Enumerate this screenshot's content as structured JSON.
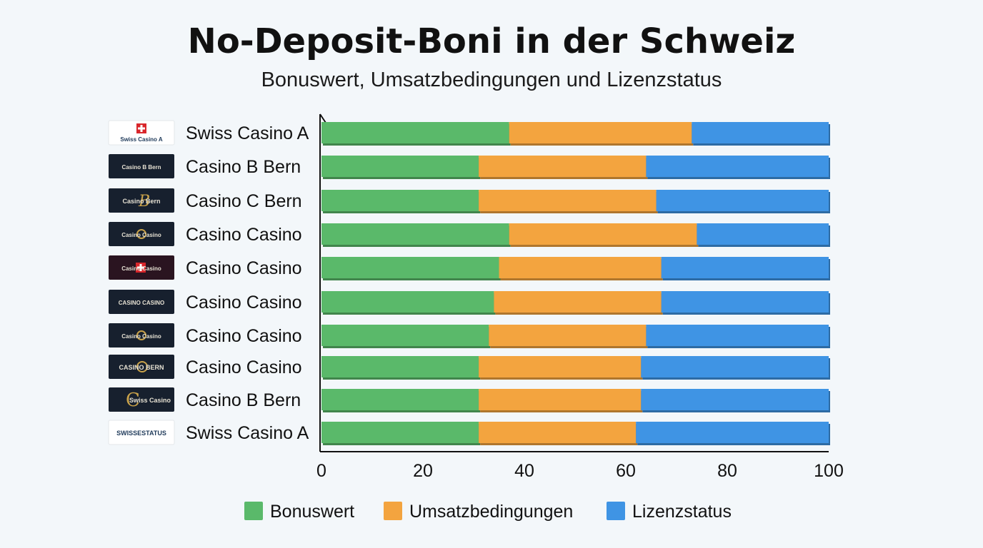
{
  "title": "No-Deposit-Boni in der Schweiz",
  "subtitle": "Bonuswert, Umsatzbedingungen und Lizenzstatus",
  "chart_data": {
    "type": "bar",
    "orientation": "horizontal",
    "stacked": true,
    "categories": [
      "Swiss Casino A",
      "Casino B Bern",
      "Casino C Bern",
      "Casino Casino",
      "Casino Casino",
      "Casino Casino",
      "Casino Casino",
      "Casino Casino",
      "Casino B Bern",
      "Swiss Casino A"
    ],
    "logos": [
      {
        "text": "Swiss Casino A",
        "theme": "light",
        "icon": "swiss-cross-icon"
      },
      {
        "text": "Casino B Bern",
        "theme": "dark",
        "icon": ""
      },
      {
        "text": "Casino Bern",
        "theme": "dark",
        "icon": "b-monogram-icon"
      },
      {
        "text": "Casino Casino",
        "theme": "dark",
        "icon": "emblem-icon"
      },
      {
        "text": "Casino Casino",
        "theme": "maroon",
        "icon": "swiss-cross-icon"
      },
      {
        "text": "CASINO CASINO",
        "theme": "dark",
        "icon": ""
      },
      {
        "text": "Casino Casino",
        "theme": "dark",
        "icon": "emblem-icon"
      },
      {
        "text": "CASINO BERN",
        "theme": "dark",
        "icon": "coin-icon"
      },
      {
        "text": "Swiss Casino",
        "theme": "dark",
        "icon": "c-monogram-icon"
      },
      {
        "text": "SWISSESTATUS",
        "theme": "light",
        "icon": ""
      }
    ],
    "series": [
      {
        "name": "Bonuswert",
        "color": "#5ab96a",
        "values": [
          37,
          31,
          31,
          37,
          35,
          34,
          33,
          31,
          31,
          31
        ]
      },
      {
        "name": "Umsatzbedingungen",
        "color": "#f3a43f",
        "values": [
          36,
          33,
          35,
          37,
          32,
          33,
          31,
          32,
          32,
          31
        ]
      },
      {
        "name": "Lizenzstatus",
        "color": "#3f94e4",
        "values": [
          27,
          36,
          34,
          26,
          33,
          33,
          36,
          37,
          37,
          38
        ]
      }
    ],
    "xlim": [
      0,
      100
    ],
    "xticks": [
      0,
      20,
      40,
      60,
      80,
      100
    ],
    "grid": false,
    "legend_position": "bottom"
  }
}
